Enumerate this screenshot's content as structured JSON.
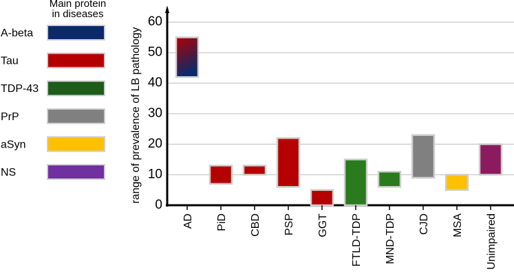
{
  "chart_data": {
    "type": "floating-bar",
    "y_label": "range of prevalence of LB pathology",
    "categories": [
      "AD",
      "PiD",
      "CBD",
      "PSP",
      "GGT",
      "FTLD-TDP",
      "MND-TDP",
      "CJD",
      "MSA",
      "Unimpaired"
    ],
    "low": [
      42,
      7,
      10,
      6,
      0,
      0,
      6,
      9,
      5,
      10
    ],
    "high": [
      55,
      13,
      13,
      22,
      5,
      15,
      11,
      23,
      10,
      20
    ],
    "colors": [
      [
        "#b00000",
        "#0a2a6b"
      ],
      [
        "#b50000"
      ],
      [
        "#b50000"
      ],
      [
        "#b50000"
      ],
      [
        "#b50000"
      ],
      [
        "#2a7a1e"
      ],
      [
        "#2a7a1e"
      ],
      [
        "#808080"
      ],
      [
        "#ffc000"
      ],
      [
        "#8c1a5e"
      ]
    ],
    "ylim": [
      0,
      65
    ],
    "yticks": [
      0,
      10,
      20,
      30,
      40,
      50,
      60
    ],
    "grid": true,
    "legend": {
      "title": "Main protein in diseases",
      "items": [
        {
          "name": "A-beta",
          "color": "#0a2a6b"
        },
        {
          "name": "Tau",
          "color": "#b50000"
        },
        {
          "name": "TDP-43",
          "color": "#1f5c1a"
        },
        {
          "name": "PrP",
          "color": "#808080"
        },
        {
          "name": "aSyn",
          "color": "#ffc000"
        },
        {
          "name": "NS",
          "color": "#7030a0"
        }
      ]
    }
  }
}
